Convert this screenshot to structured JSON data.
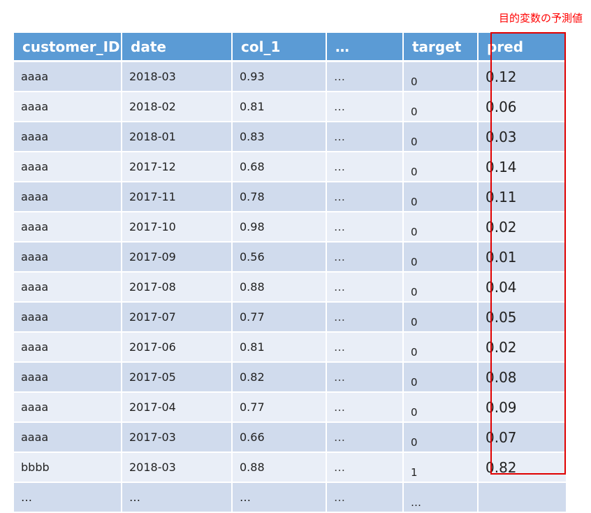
{
  "annotation": "目的変数の予測値",
  "accent_color": "#e00000",
  "header_color": "#5b9bd5",
  "columns": [
    "customer_ID",
    "date",
    "col_1",
    "…",
    "target",
    "pred"
  ],
  "rows": [
    [
      "aaaa",
      "2018-03",
      "0.93",
      "…",
      "0",
      "0.12"
    ],
    [
      "aaaa",
      "2018-02",
      "0.81",
      "…",
      "0",
      "0.06"
    ],
    [
      "aaaa",
      "2018-01",
      "0.83",
      "…",
      "0",
      "0.03"
    ],
    [
      "aaaa",
      "2017-12",
      "0.68",
      "…",
      "0",
      "0.14"
    ],
    [
      "aaaa",
      "2017-11",
      "0.78",
      "…",
      "0",
      "0.11"
    ],
    [
      "aaaa",
      "2017-10",
      "0.98",
      "…",
      "0",
      "0.02"
    ],
    [
      "aaaa",
      "2017-09",
      "0.56",
      "…",
      "0",
      "0.01"
    ],
    [
      "aaaa",
      "2017-08",
      "0.88",
      "…",
      "0",
      "0.04"
    ],
    [
      "aaaa",
      "2017-07",
      "0.77",
      "…",
      "0",
      "0.05"
    ],
    [
      "aaaa",
      "2017-06",
      "0.81",
      "…",
      "0",
      "0.02"
    ],
    [
      "aaaa",
      "2017-05",
      "0.82",
      "…",
      "0",
      "0.08"
    ],
    [
      "aaaa",
      "2017-04",
      "0.77",
      "…",
      "0",
      "0.09"
    ],
    [
      "aaaa",
      "2017-03",
      "0.66",
      "…",
      "0",
      "0.07"
    ],
    [
      "bbbb",
      "2018-03",
      "0.88",
      "…",
      "1",
      "0.82"
    ],
    [
      "…",
      "…",
      "…",
      "…",
      "…",
      ""
    ]
  ]
}
